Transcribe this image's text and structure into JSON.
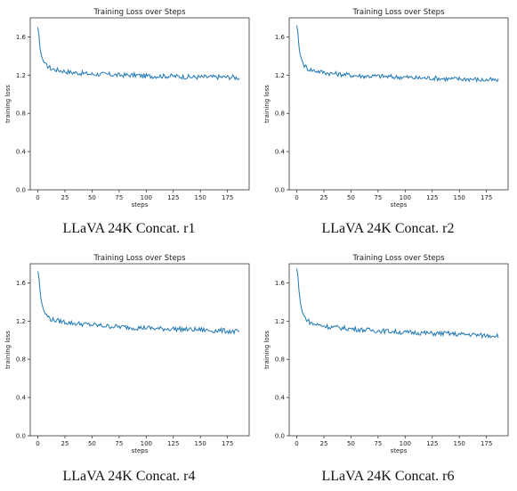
{
  "chart_data": [
    {
      "type": "line",
      "title": "Training Loss over Steps",
      "xlabel": "steps",
      "ylabel": "training loss",
      "caption": "LLaVA 24K Concat. r1",
      "xlim": [
        -7,
        195
      ],
      "ylim": [
        0.0,
        1.8
      ],
      "xticks": [
        "0",
        "25",
        "50",
        "75",
        "100",
        "125",
        "150",
        "175"
      ],
      "yticks": [
        "0.0",
        "0.4",
        "0.8",
        "1.2",
        "1.6"
      ],
      "series": [
        {
          "color": "#1f77b4",
          "x": [
            0,
            1,
            2,
            3,
            4,
            5,
            6,
            7,
            8,
            10,
            12,
            15,
            20,
            25,
            30,
            40,
            50,
            60,
            75,
            90,
            100,
            110,
            125,
            140,
            150,
            160,
            170,
            180,
            186
          ],
          "y": [
            1.7,
            1.62,
            1.48,
            1.42,
            1.38,
            1.35,
            1.33,
            1.31,
            1.3,
            1.29,
            1.27,
            1.26,
            1.25,
            1.24,
            1.23,
            1.22,
            1.21,
            1.21,
            1.2,
            1.2,
            1.19,
            1.19,
            1.19,
            1.18,
            1.18,
            1.18,
            1.18,
            1.18,
            1.17
          ]
        }
      ]
    },
    {
      "type": "line",
      "title": "Training Loss over Steps",
      "xlabel": "steps",
      "ylabel": "training loss",
      "caption": "LLaVA 24K Concat. r2",
      "xlim": [
        -7,
        195
      ],
      "ylim": [
        0.0,
        1.8
      ],
      "xticks": [
        "0",
        "25",
        "50",
        "75",
        "100",
        "125",
        "150",
        "175"
      ],
      "yticks": [
        "0.0",
        "0.4",
        "0.8",
        "1.2",
        "1.6"
      ],
      "series": [
        {
          "color": "#1f77b4",
          "x": [
            0,
            1,
            2,
            3,
            4,
            5,
            6,
            7,
            8,
            10,
            12,
            15,
            20,
            25,
            30,
            40,
            50,
            60,
            75,
            90,
            100,
            110,
            125,
            140,
            150,
            160,
            170,
            180,
            186
          ],
          "y": [
            1.72,
            1.65,
            1.5,
            1.42,
            1.38,
            1.35,
            1.32,
            1.3,
            1.29,
            1.27,
            1.26,
            1.25,
            1.24,
            1.23,
            1.22,
            1.21,
            1.2,
            1.19,
            1.19,
            1.18,
            1.18,
            1.17,
            1.17,
            1.16,
            1.16,
            1.16,
            1.15,
            1.15,
            1.14
          ]
        }
      ]
    },
    {
      "type": "line",
      "title": "Training Loss over Steps",
      "xlabel": "steps",
      "ylabel": "training loss",
      "caption": "LLaVA 24K Concat. r4",
      "xlim": [
        -7,
        195
      ],
      "ylim": [
        0.0,
        1.8
      ],
      "xticks": [
        "0",
        "25",
        "50",
        "75",
        "100",
        "125",
        "150",
        "175"
      ],
      "yticks": [
        "0.0",
        "0.4",
        "0.8",
        "1.2",
        "1.6"
      ],
      "series": [
        {
          "color": "#1f77b4",
          "x": [
            0,
            1,
            2,
            3,
            4,
            5,
            6,
            7,
            8,
            10,
            12,
            15,
            20,
            25,
            30,
            40,
            50,
            60,
            75,
            90,
            100,
            110,
            125,
            140,
            150,
            160,
            170,
            180,
            186
          ],
          "y": [
            1.72,
            1.66,
            1.52,
            1.42,
            1.37,
            1.33,
            1.3,
            1.28,
            1.26,
            1.24,
            1.22,
            1.21,
            1.2,
            1.19,
            1.18,
            1.17,
            1.16,
            1.15,
            1.14,
            1.13,
            1.13,
            1.12,
            1.12,
            1.11,
            1.11,
            1.1,
            1.1,
            1.09,
            1.09
          ]
        }
      ]
    },
    {
      "type": "line",
      "title": "Training Loss over Steps",
      "xlabel": "steps",
      "ylabel": "training loss",
      "caption": "LLaVA 24K Concat. r6",
      "xlim": [
        -7,
        195
      ],
      "ylim": [
        0.0,
        1.8
      ],
      "xticks": [
        "0",
        "25",
        "50",
        "75",
        "100",
        "125",
        "150",
        "175"
      ],
      "yticks": [
        "0.0",
        "0.4",
        "0.8",
        "1.2",
        "1.6"
      ],
      "series": [
        {
          "color": "#1f77b4",
          "x": [
            0,
            1,
            2,
            3,
            4,
            5,
            6,
            7,
            8,
            10,
            12,
            15,
            20,
            25,
            30,
            40,
            50,
            60,
            75,
            90,
            100,
            110,
            125,
            140,
            150,
            160,
            170,
            180,
            186
          ],
          "y": [
            1.75,
            1.68,
            1.52,
            1.42,
            1.35,
            1.3,
            1.27,
            1.25,
            1.23,
            1.21,
            1.19,
            1.17,
            1.16,
            1.15,
            1.14,
            1.13,
            1.12,
            1.11,
            1.1,
            1.09,
            1.08,
            1.08,
            1.07,
            1.07,
            1.06,
            1.06,
            1.05,
            1.05,
            1.05
          ]
        }
      ]
    }
  ]
}
